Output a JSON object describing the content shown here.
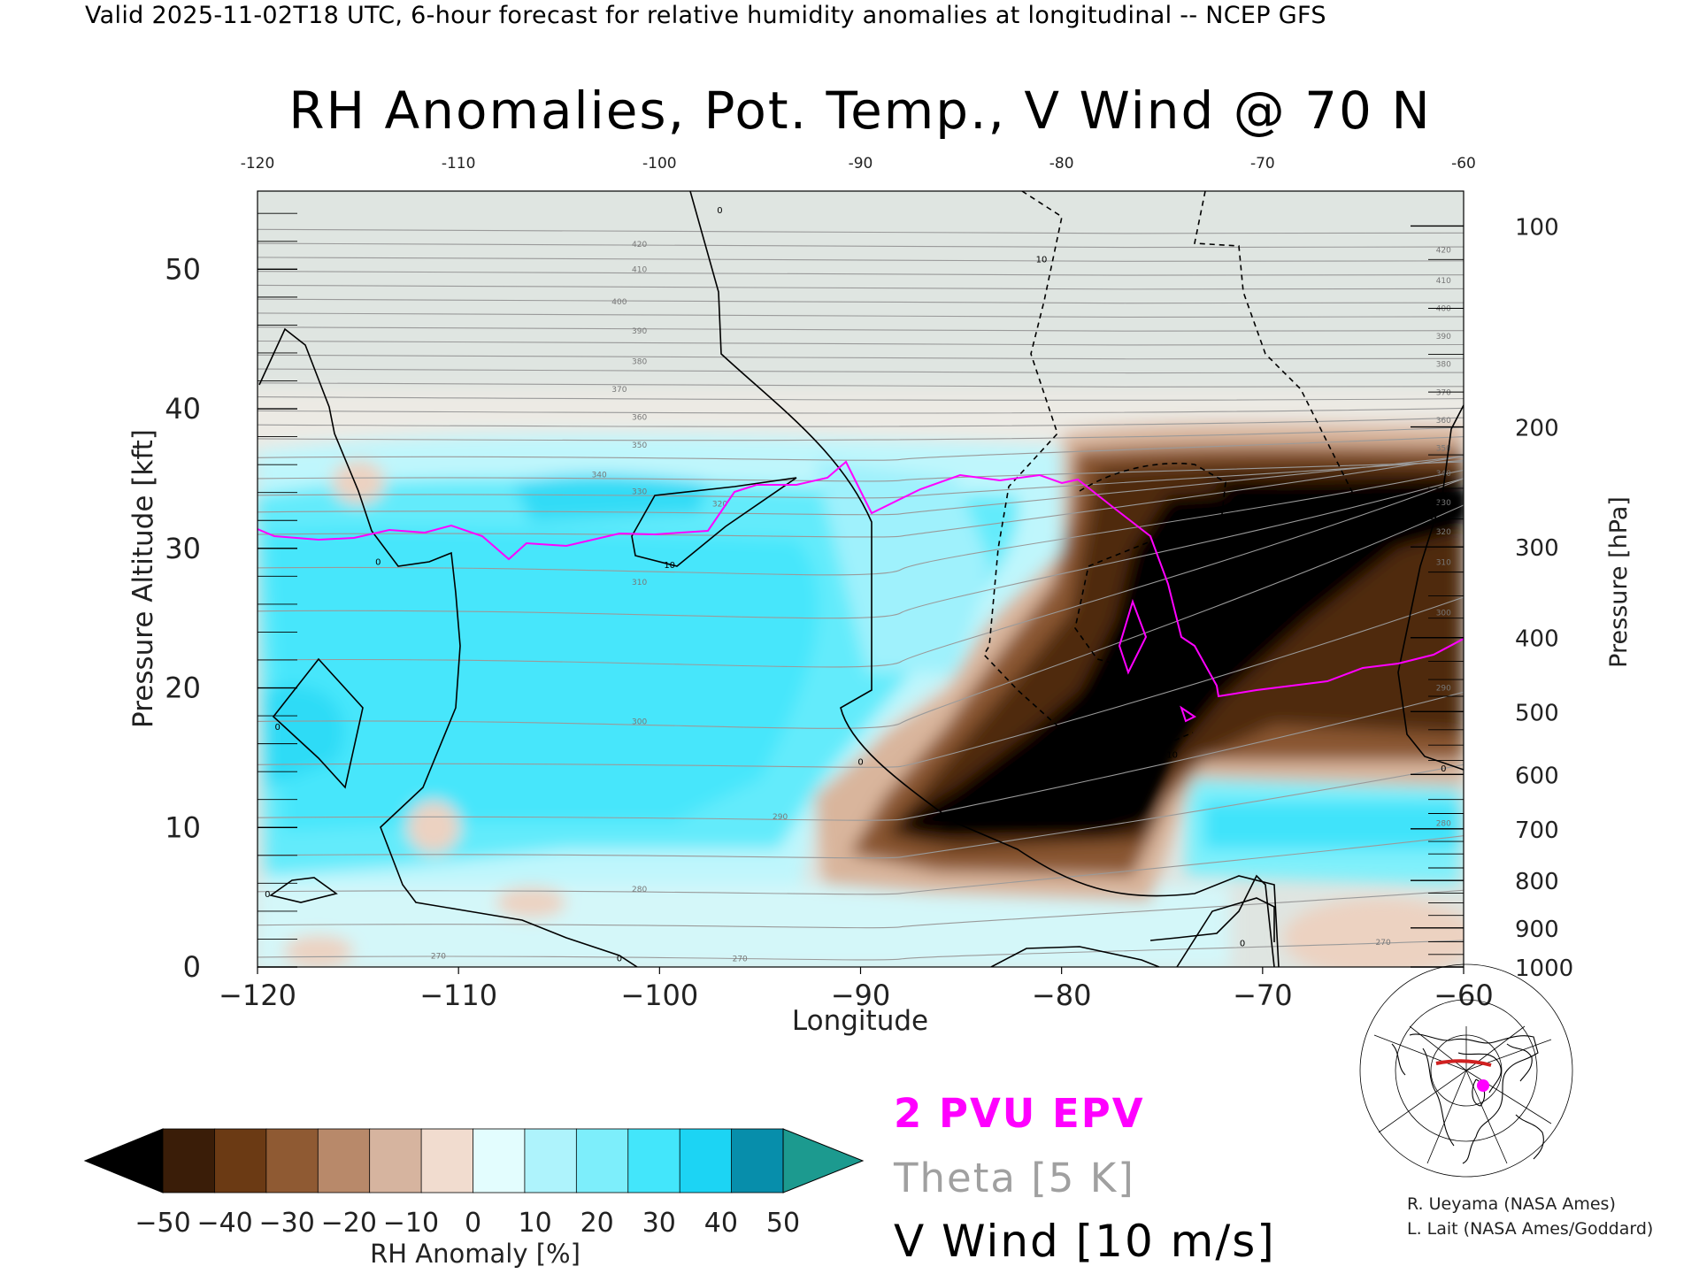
{
  "header": {
    "valid_line": "Valid 2025-11-02T18 UTC, 6-hour forecast for relative humidity anomalies at longitudinal -- NCEP GFS"
  },
  "colors": {
    "epv": "#ff00ff",
    "theta": "#a0a0a0",
    "vwind": "#000000",
    "frame": "#000000",
    "plot_bg": "#dfe5e1"
  },
  "chart_data": {
    "type": "heatmap",
    "title": "RH Anomalies, Pot. Temp., V Wind @ 70 N",
    "xlabel": "Longitude",
    "ylabel": "Pressure Altitude [kft]",
    "y2label": "Pressure [hPa]",
    "xlim": [
      -120,
      -60
    ],
    "ylim": [
      0,
      55.6
    ],
    "x_ticks": [
      -120,
      -110,
      -100,
      -90,
      -80,
      -70,
      -60
    ],
    "x_tick_labels": [
      "−120",
      "−110",
      "−100",
      "−90",
      "−80",
      "−70",
      "−60"
    ],
    "top_tick_labels": [
      "-120",
      "-110",
      "-100",
      "-90",
      "-80",
      "-70",
      "-60"
    ],
    "y_ticks": [
      0,
      10,
      20,
      30,
      40,
      50
    ],
    "y_tick_labels": [
      "0",
      "10",
      "20",
      "30",
      "40",
      "50"
    ],
    "pressure_ticks": [
      {
        "kft": 0,
        "label": "1000"
      },
      {
        "kft": 2.8,
        "label": "900"
      },
      {
        "kft": 6.2,
        "label": "800"
      },
      {
        "kft": 9.9,
        "label": "700"
      },
      {
        "kft": 13.8,
        "label": "600"
      },
      {
        "kft": 18.3,
        "label": "500"
      },
      {
        "kft": 23.6,
        "label": "400"
      },
      {
        "kft": 30.1,
        "label": "300"
      },
      {
        "kft": 38.7,
        "label": "200"
      },
      {
        "kft": 53.1,
        "label": "100"
      }
    ],
    "legend": [
      {
        "label": "2 PVU EPV",
        "color": "#ff00ff"
      },
      {
        "label": "Theta [5 K]",
        "color": "#a0a0a0"
      },
      {
        "label": "V Wind [10 m/s]",
        "color": "#000000"
      }
    ],
    "colorbar": {
      "label": "RH Anomaly [%]",
      "ticks": [
        "−50",
        "−40",
        "−30",
        "−20",
        "−10",
        "0",
        "10",
        "20",
        "30",
        "40",
        "50"
      ],
      "colors": [
        "#000000",
        "#3a1d08",
        "#6b3a14",
        "#8f5a33",
        "#b8896a",
        "#d6b49f",
        "#f1dccf",
        "#e3fdfe",
        "#aef3fc",
        "#7deefb",
        "#43e6fb",
        "#1cd4f4",
        "#078eab",
        "#1c9a8f"
      ]
    },
    "theta_labels": [
      {
        "lon": -101,
        "kft": 51.6,
        "text": "420"
      },
      {
        "lon": -101,
        "kft": 49.8,
        "text": "410"
      },
      {
        "lon": -102,
        "kft": 47.5,
        "text": "400"
      },
      {
        "lon": -101,
        "kft": 45.4,
        "text": "390"
      },
      {
        "lon": -101,
        "kft": 43.2,
        "text": "380"
      },
      {
        "lon": -102,
        "kft": 41.2,
        "text": "370"
      },
      {
        "lon": -101,
        "kft": 39.2,
        "text": "360"
      },
      {
        "lon": -101,
        "kft": 37.2,
        "text": "350"
      },
      {
        "lon": -103,
        "kft": 35.1,
        "text": "340"
      },
      {
        "lon": -101,
        "kft": 33.9,
        "text": "330"
      },
      {
        "lon": -97,
        "kft": 33.0,
        "text": "320"
      },
      {
        "lon": -101,
        "kft": 27.4,
        "text": "310"
      },
      {
        "lon": -101,
        "kft": 17.4,
        "text": "300"
      },
      {
        "lon": -94,
        "kft": 10.6,
        "text": "290"
      },
      {
        "lon": -101,
        "kft": 5.4,
        "text": "280"
      },
      {
        "lon": -111,
        "kft": 0.6,
        "text": "270"
      },
      {
        "lon": -96,
        "kft": 0.4,
        "text": "270"
      },
      {
        "lon": -61,
        "kft": 51.2,
        "text": "420"
      },
      {
        "lon": -61,
        "kft": 49.0,
        "text": "410"
      },
      {
        "lon": -61,
        "kft": 47.0,
        "text": "400"
      },
      {
        "lon": -61,
        "kft": 45.0,
        "text": "390"
      },
      {
        "lon": -61,
        "kft": 43.0,
        "text": "380"
      },
      {
        "lon": -61,
        "kft": 41.0,
        "text": "370"
      },
      {
        "lon": -61,
        "kft": 39.0,
        "text": "360"
      },
      {
        "lon": -61,
        "kft": 37.0,
        "text": "350"
      },
      {
        "lon": -61,
        "kft": 35.2,
        "text": "340"
      },
      {
        "lon": -61,
        "kft": 33.1,
        "text": "330"
      },
      {
        "lon": -61,
        "kft": 31.0,
        "text": "320"
      },
      {
        "lon": -61,
        "kft": 28.8,
        "text": "310"
      },
      {
        "lon": -61,
        "kft": 25.2,
        "text": "300"
      },
      {
        "lon": -61,
        "kft": 19.8,
        "text": "290"
      },
      {
        "lon": -61,
        "kft": 10.1,
        "text": "280"
      },
      {
        "lon": -64,
        "kft": 1.6,
        "text": "270"
      }
    ],
    "wind_labels": [
      {
        "lon": -97,
        "kft": 54.0,
        "text": "0"
      },
      {
        "lon": -114,
        "kft": 28.8,
        "text": "0"
      },
      {
        "lon": -119,
        "kft": 17.0,
        "text": "0"
      },
      {
        "lon": -119.5,
        "kft": 5.0,
        "text": "0"
      },
      {
        "lon": -102,
        "kft": 0.4,
        "text": "0"
      },
      {
        "lon": -90,
        "kft": 14.5,
        "text": "0"
      },
      {
        "lon": -61,
        "kft": 14.0,
        "text": "0"
      },
      {
        "lon": -71,
        "kft": 1.5,
        "text": "0"
      },
      {
        "lon": -99.5,
        "kft": 28.6,
        "text": "10"
      },
      {
        "lon": -81,
        "kft": 50.5,
        "text": "10"
      },
      {
        "lon": -74.5,
        "kft": 15.0,
        "text": "10"
      }
    ]
  },
  "inset_map": {
    "description_hidden": ""
  },
  "credits": {
    "line1": "R. Ueyama (NASA Ames)",
    "line2": "L. Lait (NASA Ames/Goddard)"
  }
}
